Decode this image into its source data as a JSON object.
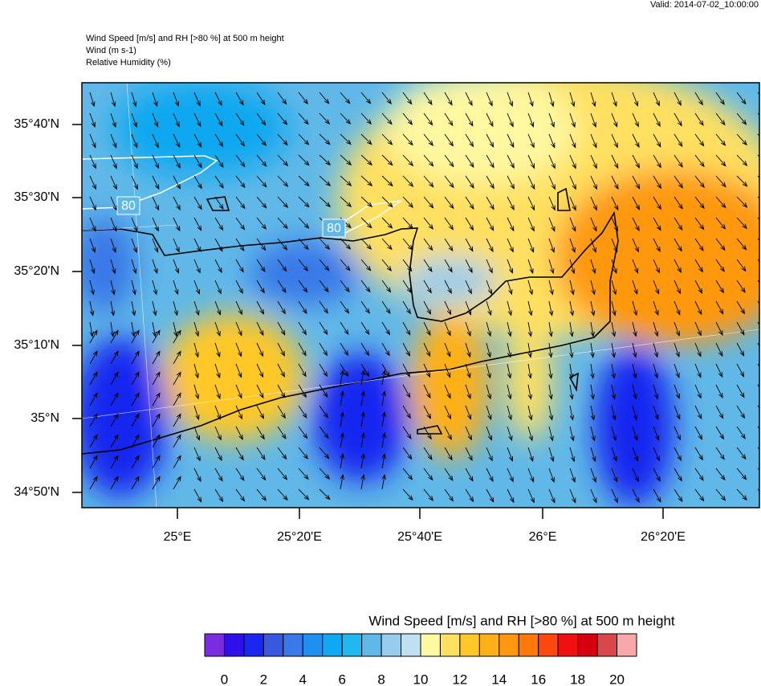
{
  "header": {
    "valid": "Valid: 2014-07-02_10:00:00",
    "lines": [
      "Wind Speed [m/s] and RH [>80 %] at 500 m height",
      "Wind   (m s-1)",
      "Relative Humidity   (%)"
    ]
  },
  "map": {
    "lat_labels": [
      "35°40'N",
      "35°30'N",
      "35°20'N",
      "35°10'N",
      "35°N",
      "34°50'N"
    ],
    "lon_labels": [
      "25°E",
      "25°20'E",
      "25°40'E",
      "26°E",
      "26°20'E"
    ],
    "contour_labels": [
      "80",
      "80"
    ]
  },
  "colorbar": {
    "title": "Wind Speed [m/s] and RH [>80 %] at 500 m height",
    "colors": [
      "#7b2be0",
      "#3010e8",
      "#1828f0",
      "#3858e0",
      "#3878e8",
      "#2090f0",
      "#10a8f0",
      "#20b8f0",
      "#60b8e8",
      "#98ccec",
      "#c0e0f0",
      "#fff8a0",
      "#ffe060",
      "#ffc828",
      "#ffb018",
      "#ff9810",
      "#ff7808",
      "#ff4810",
      "#f01010",
      "#d80010",
      "#d84848",
      "#f8a8a8"
    ],
    "labels": [
      0,
      2,
      4,
      6,
      8,
      10,
      12,
      14,
      16,
      18,
      20
    ]
  }
}
